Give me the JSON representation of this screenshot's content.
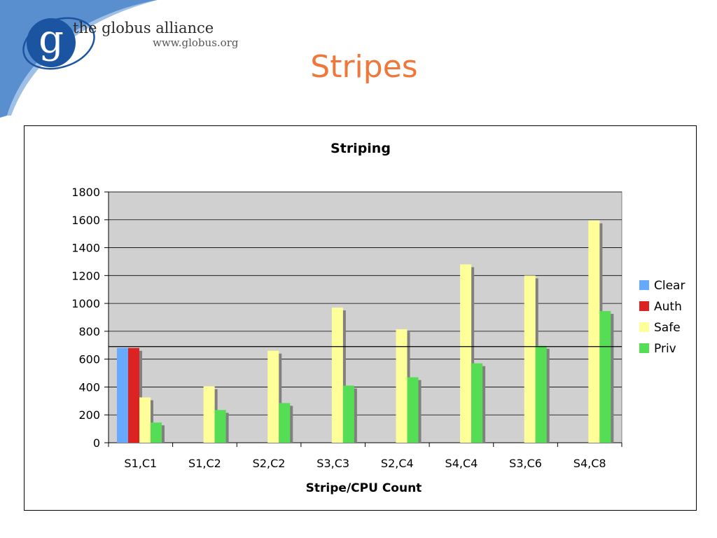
{
  "header": {
    "logo_letter": "g",
    "org_name": "the globus alliance",
    "org_url": "www.globus.org",
    "slide_title": "Stripes"
  },
  "colors": {
    "title": "#f0773a",
    "swoosh": "#5a8fcf",
    "logo": "#1b55a1",
    "plot_background": "#d0d0d0"
  },
  "chart_data": {
    "type": "bar",
    "title": "Striping",
    "xlabel": "Stripe/CPU Count",
    "ylabel": "",
    "ylim": [
      0,
      1800
    ],
    "yticks": [
      0,
      200,
      400,
      600,
      800,
      1000,
      1200,
      1400,
      1600,
      1800
    ],
    "grid": true,
    "legend_position": "right",
    "categories": [
      "S1,C1",
      "S1,C2",
      "S2,C2",
      "S3,C3",
      "S2,C4",
      "S4,C4",
      "S3,C6",
      "S4,C8"
    ],
    "series": [
      {
        "name": "Clear",
        "color": "#66aaff",
        "values": [
          680,
          null,
          null,
          null,
          null,
          null,
          null,
          null
        ]
      },
      {
        "name": "Auth",
        "color": "#dd2222",
        "values": [
          680,
          null,
          null,
          null,
          null,
          null,
          null,
          null
        ]
      },
      {
        "name": "Safe",
        "color": "#ffff99",
        "values": [
          325,
          405,
          660,
          970,
          815,
          1280,
          1200,
          1595
        ]
      },
      {
        "name": "Priv",
        "color": "#55dd55",
        "values": [
          145,
          235,
          285,
          410,
          470,
          570,
          695,
          945
        ]
      }
    ],
    "reference_line": 690
  }
}
